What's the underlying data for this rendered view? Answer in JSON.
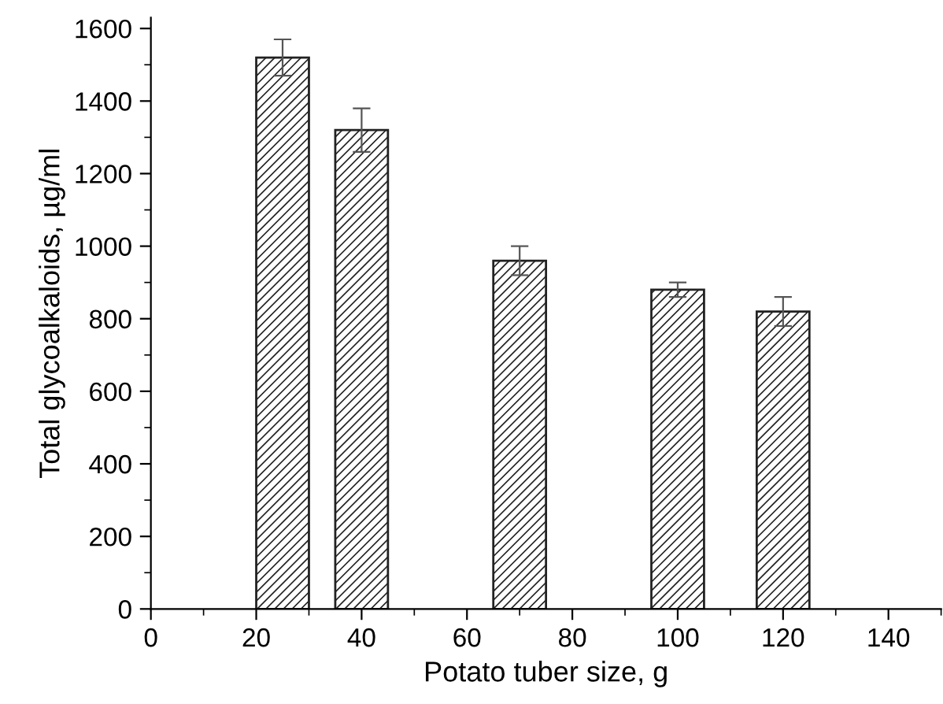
{
  "chart_data": {
    "type": "bar",
    "xlabel": "Potato tuber size, g",
    "ylabel": "Total glycoalkaloids, µg/ml",
    "x": [
      25,
      40,
      70,
      100,
      120
    ],
    "values": [
      1520,
      1320,
      960,
      880,
      820
    ],
    "errors": [
      50,
      60,
      40,
      20,
      40
    ],
    "color": "#222222",
    "xlim": [
      0,
      150
    ],
    "xticks": [
      0,
      20,
      40,
      60,
      80,
      100,
      120,
      140
    ],
    "ylim": [
      0,
      1630
    ],
    "yticks": [
      0,
      200,
      400,
      600,
      800,
      1000,
      1200,
      1400,
      1600
    ],
    "grid": false,
    "legend": false
  }
}
